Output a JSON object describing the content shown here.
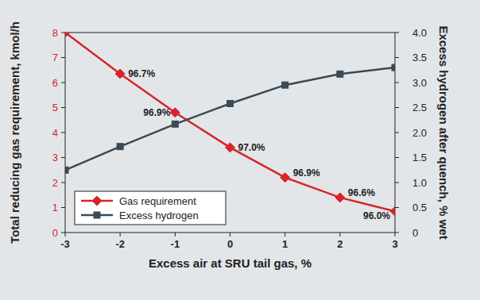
{
  "chart_data": {
    "type": "line",
    "x_label": "Excess air at SRU tail gas, %",
    "y_label": "Total reducing gas requirement, kmol/h",
    "y2_label": "Excess hydrogen after quench, % wet",
    "x": [
      -3,
      -2,
      -1,
      0,
      1,
      2,
      3
    ],
    "series": [
      {
        "name": "Gas requirement",
        "color": "#d7242b",
        "marker": "diamond",
        "line_style": "solid",
        "values": [
          8.0,
          6.35,
          4.8,
          3.4,
          2.2,
          1.4,
          0.85
        ],
        "point_labels": [
          null,
          "96.7%",
          "96.9%",
          "97.0%",
          "96.9%",
          "96.6%",
          "96.0%"
        ]
      },
      {
        "name": "Excess hydrogen",
        "color": "#3b4a55",
        "marker": "square",
        "line_style": "solid",
        "axis": "y2",
        "values": [
          1.25,
          1.72,
          2.17,
          2.58,
          2.95,
          3.17,
          3.3
        ]
      }
    ],
    "xlim": [
      -3,
      3
    ],
    "xticks": [
      -3,
      -2,
      -1,
      0,
      1,
      2,
      3
    ],
    "ylim": [
      0,
      8
    ],
    "yticks": [
      0,
      1,
      2,
      3,
      4,
      5,
      6,
      7,
      8
    ],
    "y2lim": [
      0,
      4
    ],
    "y2ticks": [
      0,
      0.5,
      {
        "value": 1,
        "label": "1.0"
      },
      1.5,
      {
        "value": 2,
        "label": "2.0"
      },
      2.5,
      {
        "value": 3,
        "label": "3.0"
      },
      3.5,
      {
        "value": 4,
        "label": "4.0"
      }
    ],
    "grid": false,
    "legend": "lower left"
  }
}
